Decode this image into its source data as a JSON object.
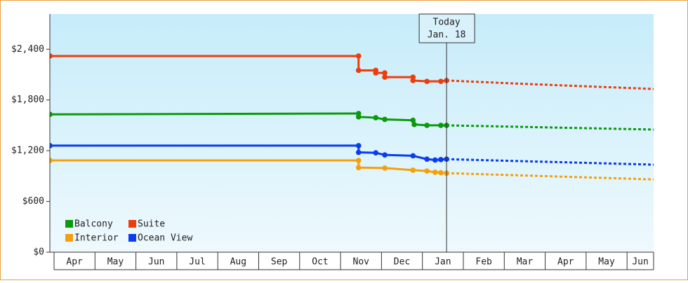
{
  "chart_data": {
    "type": "line",
    "categories": [
      "Apr",
      "May",
      "Jun",
      "Jul",
      "Aug",
      "Sep",
      "Oct",
      "Nov",
      "Dec",
      "Jan",
      "Feb",
      "Mar",
      "Apr",
      "May",
      "Jun"
    ],
    "xlim": [
      -0.1,
      14.65
    ],
    "ylim": [
      0,
      2800
    ],
    "yticks": [
      {
        "value": 0,
        "label": "$0"
      },
      {
        "value": 600,
        "label": "$600"
      },
      {
        "value": 1200,
        "label": "$1,200"
      },
      {
        "value": 1800,
        "label": "$1,800"
      },
      {
        "value": 2400,
        "label": "$2,400"
      }
    ],
    "today": {
      "label": "Today",
      "date": "Jan. 18",
      "x": 9.59
    },
    "series": [
      {
        "name": "Balcony",
        "color": "#0a9a0a",
        "x": [
          -0.1,
          7.44,
          7.44,
          7.86,
          8.08,
          8.77,
          8.8,
          9.11,
          9.45,
          9.59
        ],
        "values": [
          1630,
          1640,
          1600,
          1590,
          1570,
          1560,
          1510,
          1500,
          1500,
          1500
        ],
        "forecast": {
          "x": [
            9.59,
            14.65
          ],
          "values": [
            1500,
            1450
          ]
        }
      },
      {
        "name": "Suite",
        "color": "#f03c0a",
        "x": [
          -0.1,
          7.44,
          7.44,
          7.86,
          7.86,
          8.08,
          8.08,
          8.77,
          8.77,
          9.11,
          9.45,
          9.59
        ],
        "values": [
          2320,
          2320,
          2150,
          2150,
          2120,
          2120,
          2070,
          2070,
          2030,
          2020,
          2020,
          2030
        ],
        "forecast": {
          "x": [
            9.59,
            11.5,
            14.65
          ],
          "values": [
            2030,
            1990,
            1930
          ]
        }
      },
      {
        "name": "Interior",
        "color": "#f5a00a",
        "x": [
          -0.1,
          7.44,
          7.44,
          8.08,
          8.77,
          9.11,
          9.31,
          9.45,
          9.59
        ],
        "values": [
          1085,
          1085,
          1000,
          995,
          970,
          960,
          945,
          940,
          935
        ],
        "forecast": {
          "x": [
            9.59,
            14.65
          ],
          "values": [
            935,
            860
          ]
        }
      },
      {
        "name": "Ocean View",
        "color": "#0a3cf0",
        "x": [
          -0.1,
          7.44,
          7.44,
          7.86,
          8.08,
          8.77,
          9.11,
          9.31,
          9.45,
          9.59
        ],
        "values": [
          1260,
          1260,
          1180,
          1175,
          1150,
          1140,
          1100,
          1090,
          1095,
          1100
        ],
        "forecast": {
          "x": [
            9.59,
            14.65
          ],
          "values": [
            1100,
            1035
          ]
        }
      }
    ]
  }
}
